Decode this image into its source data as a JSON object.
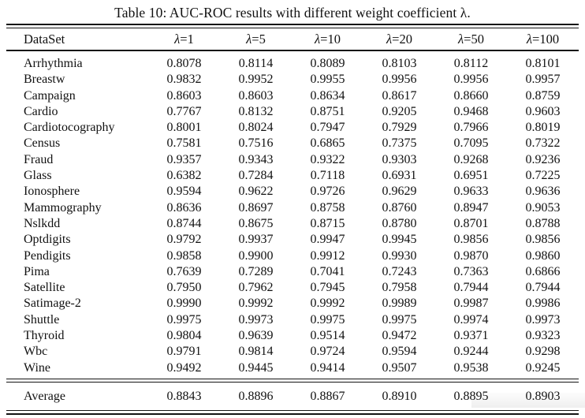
{
  "table": {
    "title": "Table 10: AUC-ROC results with different weight coefficient λ.",
    "columns": [
      "DataSet",
      "λ=1",
      "λ=5",
      "λ=10",
      "λ=20",
      "λ=50",
      "λ=100"
    ],
    "rows": [
      [
        "Arrhythmia",
        "0.8078",
        "0.8114",
        "0.8089",
        "0.8103",
        "0.8112",
        "0.8101"
      ],
      [
        "Breastw",
        "0.9832",
        "0.9952",
        "0.9955",
        "0.9956",
        "0.9956",
        "0.9957"
      ],
      [
        "Campaign",
        "0.8603",
        "0.8603",
        "0.8634",
        "0.8617",
        "0.8660",
        "0.8759"
      ],
      [
        "Cardio",
        "0.7767",
        "0.8132",
        "0.8751",
        "0.9205",
        "0.9468",
        "0.9603"
      ],
      [
        "Cardiotocography",
        "0.8001",
        "0.8024",
        "0.7947",
        "0.7929",
        "0.7966",
        "0.8019"
      ],
      [
        "Census",
        "0.7581",
        "0.7516",
        "0.6865",
        "0.7375",
        "0.7095",
        "0.7322"
      ],
      [
        "Fraud",
        "0.9357",
        "0.9343",
        "0.9322",
        "0.9303",
        "0.9268",
        "0.9236"
      ],
      [
        "Glass",
        "0.6382",
        "0.7284",
        "0.7118",
        "0.6931",
        "0.6951",
        "0.7225"
      ],
      [
        "Ionosphere",
        "0.9594",
        "0.9622",
        "0.9726",
        "0.9629",
        "0.9633",
        "0.9636"
      ],
      [
        "Mammography",
        "0.8636",
        "0.8697",
        "0.8758",
        "0.8760",
        "0.8947",
        "0.9053"
      ],
      [
        "Nslkdd",
        "0.8744",
        "0.8675",
        "0.8715",
        "0.8780",
        "0.8701",
        "0.8788"
      ],
      [
        "Optdigits",
        "0.9792",
        "0.9937",
        "0.9947",
        "0.9945",
        "0.9856",
        "0.9856"
      ],
      [
        "Pendigits",
        "0.9858",
        "0.9900",
        "0.9912",
        "0.9930",
        "0.9870",
        "0.9860"
      ],
      [
        "Pima",
        "0.7639",
        "0.7289",
        "0.7041",
        "0.7243",
        "0.7363",
        "0.6866"
      ],
      [
        "Satellite",
        "0.7950",
        "0.7962",
        "0.7945",
        "0.7958",
        "0.7944",
        "0.7944"
      ],
      [
        "Satimage-2",
        "0.9990",
        "0.9992",
        "0.9992",
        "0.9989",
        "0.9987",
        "0.9986"
      ],
      [
        "Shuttle",
        "0.9975",
        "0.9973",
        "0.9975",
        "0.9975",
        "0.9974",
        "0.9973"
      ],
      [
        "Thyroid",
        "0.9804",
        "0.9639",
        "0.9514",
        "0.9472",
        "0.9371",
        "0.9323"
      ],
      [
        "Wbc",
        "0.9791",
        "0.9814",
        "0.9724",
        "0.9594",
        "0.9244",
        "0.9298"
      ],
      [
        "Wine",
        "0.9492",
        "0.9445",
        "0.9414",
        "0.9507",
        "0.9538",
        "0.9245"
      ]
    ],
    "footer": [
      "Average",
      "0.8843",
      "0.8896",
      "0.8867",
      "0.8910",
      "0.8895",
      "0.8903"
    ]
  }
}
